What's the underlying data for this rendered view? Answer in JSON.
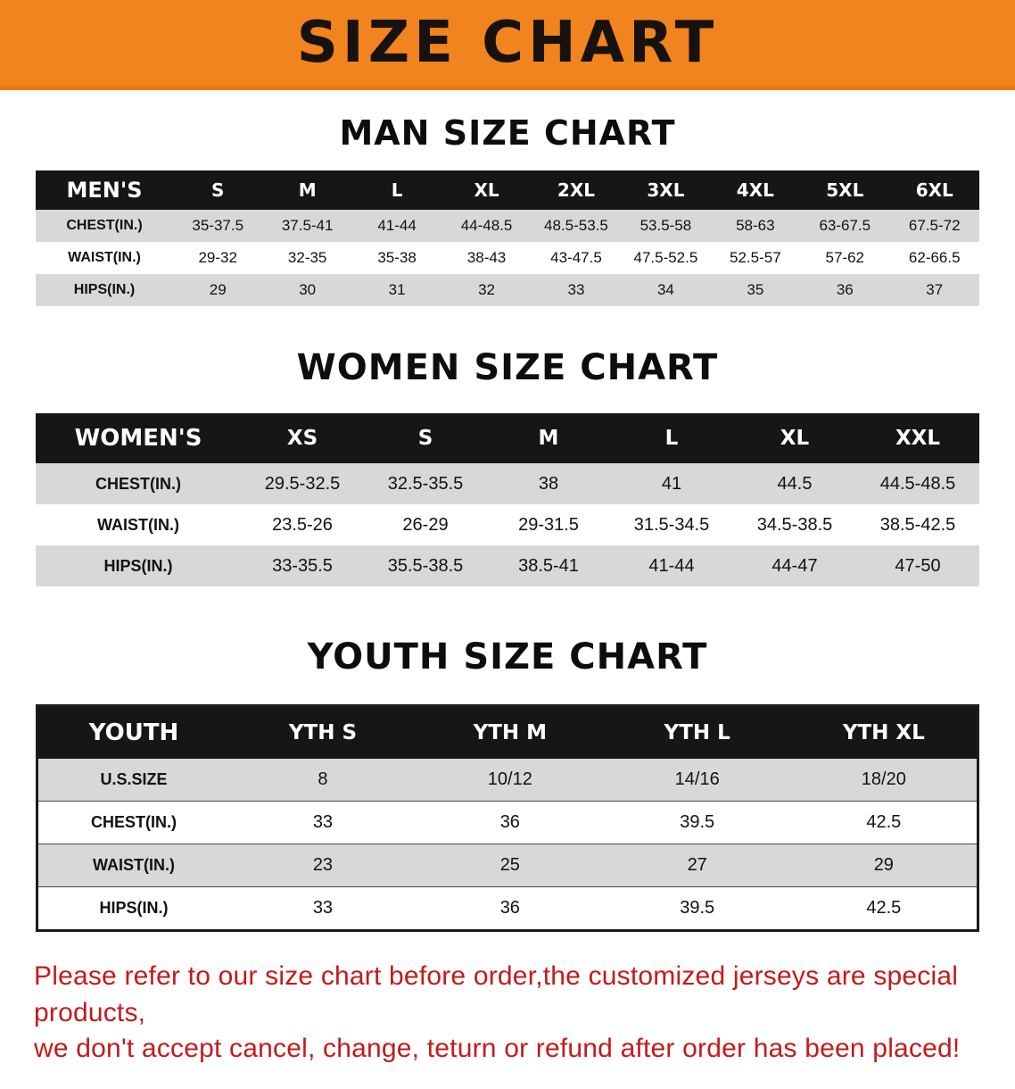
{
  "banner": {
    "title": "SIZE CHART"
  },
  "colors": {
    "banner_bg": "#f1841f",
    "table_header_bg": "#161616",
    "row_stripe_gray": "#d8d8d8",
    "disclaimer_red": "#c51a1b"
  },
  "men": {
    "heading": "MAN SIZE CHART",
    "header": [
      "MEN'S",
      "S",
      "M",
      "L",
      "XL",
      "2XL",
      "3XL",
      "4XL",
      "5XL",
      "6XL"
    ],
    "rows": [
      [
        "CHEST(IN.)",
        "35-37.5",
        "37.5-41",
        "41-44",
        "44-48.5",
        "48.5-53.5",
        "53.5-58",
        "58-63",
        "63-67.5",
        "67.5-72"
      ],
      [
        "WAIST(IN.)",
        "29-32",
        "32-35",
        "35-38",
        "38-43",
        "43-47.5",
        "47.5-52.5",
        "52.5-57",
        "57-62",
        "62-66.5"
      ],
      [
        "HIPS(IN.)",
        "29",
        "30",
        "31",
        "32",
        "33",
        "34",
        "35",
        "36",
        "37"
      ]
    ]
  },
  "women": {
    "heading": "WOMEN SIZE CHART",
    "header": [
      "WOMEN'S",
      "XS",
      "S",
      "M",
      "L",
      "XL",
      "XXL"
    ],
    "rows": [
      [
        "CHEST(IN.)",
        "29.5-32.5",
        "32.5-35.5",
        "38",
        "41",
        "44.5",
        "44.5-48.5"
      ],
      [
        "WAIST(IN.)",
        "23.5-26",
        "26-29",
        "29-31.5",
        "31.5-34.5",
        "34.5-38.5",
        "38.5-42.5"
      ],
      [
        "HIPS(IN.)",
        "33-35.5",
        "35.5-38.5",
        "38.5-41",
        "41-44",
        "44-47",
        "47-50"
      ]
    ]
  },
  "youth": {
    "heading": "YOUTH SIZE CHART",
    "header": [
      "YOUTH",
      "YTH S",
      "YTH M",
      "YTH L",
      "YTH XL"
    ],
    "rows": [
      [
        "U.S.SIZE",
        "8",
        "10/12",
        "14/16",
        "18/20"
      ],
      [
        "CHEST(IN.)",
        "33",
        "36",
        "39.5",
        "42.5"
      ],
      [
        "WAIST(IN.)",
        "23",
        "25",
        "27",
        "29"
      ],
      [
        "HIPS(IN.)",
        "33",
        "36",
        "39.5",
        "42.5"
      ]
    ]
  },
  "disclaimer": {
    "line1": "Please refer to our size chart before order,the customized jerseys are special products,",
    "line2": "we don't accept cancel, change, teturn or refund after order has been placed!"
  }
}
